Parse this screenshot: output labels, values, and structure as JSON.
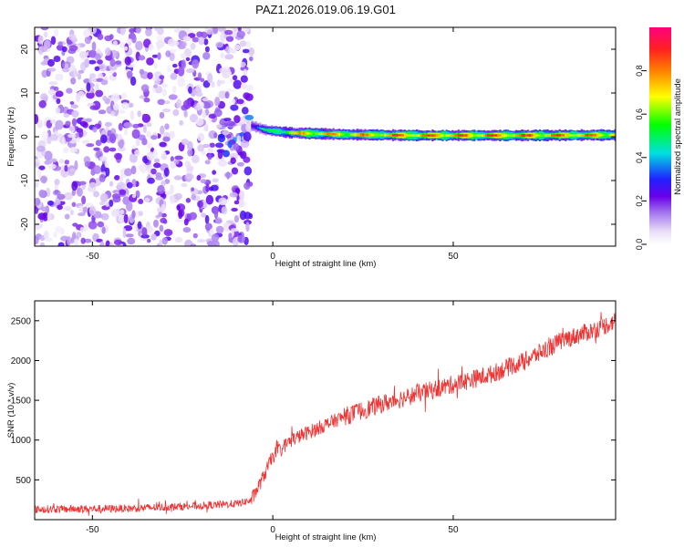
{
  "title": "PAZ1.2026.019.06.19.G01",
  "chart_data": [
    {
      "type": "heatmap",
      "xlabel": "Height of straight line (km)",
      "ylabel": "Frequency (Hz)",
      "xlim": [
        -66,
        95
      ],
      "ylim": [
        -25,
        25
      ],
      "xticks": [
        -50,
        0,
        50
      ],
      "yticks": [
        -20,
        -10,
        0,
        10,
        20
      ],
      "colorbar": {
        "label": "Normalized spectral amplitude",
        "range": [
          0,
          1
        ],
        "ticks": [
          0.0,
          0.2,
          0.4,
          0.6,
          0.8
        ],
        "tick_labels": [
          "0.0",
          "0.2",
          "0.4",
          "0.6",
          "0.8"
        ]
      },
      "description_features": {
        "noise_region_x": [
          -66,
          -6
        ],
        "transition_x": [
          -16,
          -4
        ],
        "carrier_start_x": -6,
        "carrier_end_x": 95,
        "carrier_frequency_path": [
          {
            "x": -6,
            "f": 2.5
          },
          {
            "x": -2,
            "f": 1.5
          },
          {
            "x": 5,
            "f": 0.9
          },
          {
            "x": 20,
            "f": 0.5
          },
          {
            "x": 40,
            "f": 0.3
          },
          {
            "x": 70,
            "f": 0.3
          },
          {
            "x": 95,
            "f": 0.4
          }
        ],
        "carrier_amplitude_path": [
          {
            "x": -6,
            "a": 0.35
          },
          {
            "x": 0,
            "a": 0.6
          },
          {
            "x": 10,
            "a": 0.85
          },
          {
            "x": 20,
            "a": 0.8
          },
          {
            "x": 40,
            "a": 0.9
          },
          {
            "x": 70,
            "a": 0.9
          },
          {
            "x": 95,
            "a": 0.85
          }
        ]
      }
    },
    {
      "type": "line",
      "xlabel": "Height of straight line (km)",
      "ylabel": "SNR (10 * v/v)",
      "xlim": [
        -66,
        95
      ],
      "ylim": [
        0,
        2750
      ],
      "xticks": [
        -50,
        0,
        50
      ],
      "yticks": [
        500,
        1000,
        1500,
        2000,
        2500
      ],
      "color": "#ee3333",
      "series": [
        {
          "name": "SNR",
          "x": [
            -66,
            -40,
            -20,
            -10,
            -6,
            -3,
            0,
            5,
            10,
            20,
            30,
            40,
            50,
            60,
            70,
            80,
            90,
            95
          ],
          "y": [
            130,
            140,
            175,
            200,
            240,
            500,
            800,
            1000,
            1100,
            1300,
            1450,
            1580,
            1700,
            1820,
            2000,
            2250,
            2400,
            2500
          ],
          "noise_amplitude": 90
        }
      ]
    }
  ]
}
